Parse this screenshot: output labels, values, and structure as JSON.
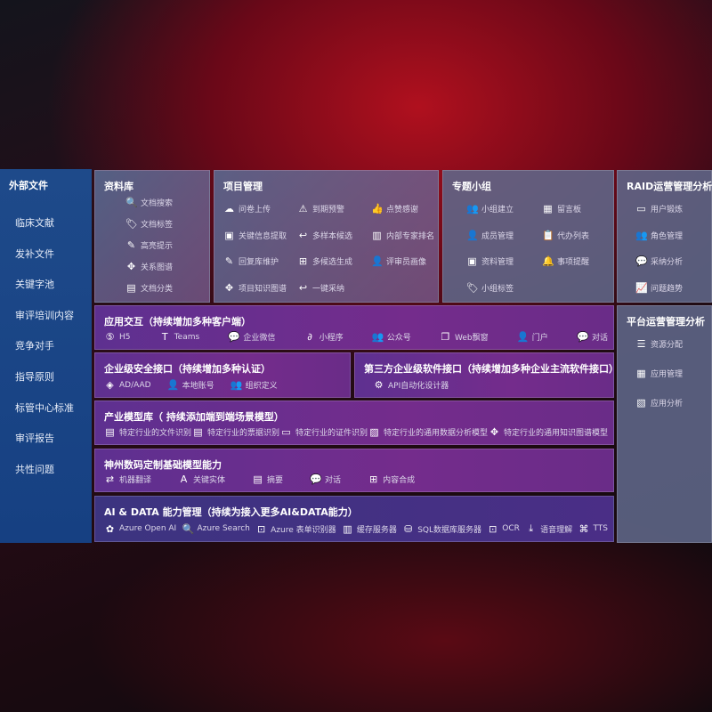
{
  "sidebar": {
    "title": "外部文件",
    "items": [
      "临床文献",
      "发补文件",
      "关键字池",
      "审评培训内容",
      "竞争对手",
      "指导原则",
      "标管中心标准",
      "审评报告",
      "共性问题"
    ]
  },
  "library": {
    "title": "资料库",
    "items": [
      {
        "label": "文档搜索",
        "icon": "document-search-icon",
        "glyph": "🔍"
      },
      {
        "label": "文档标签",
        "icon": "tag-icon",
        "glyph": "🏷"
      },
      {
        "label": "高亮提示",
        "icon": "pen-icon",
        "glyph": "✎"
      },
      {
        "label": "关系图谱",
        "icon": "graph-icon",
        "glyph": "✥"
      },
      {
        "label": "文档分类",
        "icon": "document-classify-icon",
        "glyph": "▤"
      }
    ]
  },
  "project": {
    "title": "项目管理",
    "items": [
      {
        "label": "问卷上传",
        "icon": "cloud-upload-icon",
        "glyph": "☁"
      },
      {
        "label": "到期预警",
        "icon": "alarm-icon",
        "glyph": "⚠"
      },
      {
        "label": "点赞感谢",
        "icon": "thumbs-up-icon",
        "glyph": "👍"
      },
      {
        "label": "关键信息提取",
        "icon": "window-icon",
        "glyph": "▣"
      },
      {
        "label": "多样本候选",
        "icon": "reply-icon",
        "glyph": "↩"
      },
      {
        "label": "内部专家排名",
        "icon": "ranking-icon",
        "glyph": "▥"
      },
      {
        "label": "回复库维护",
        "icon": "edit-icon",
        "glyph": "✎"
      },
      {
        "label": "多候选生成",
        "icon": "puzzle-icon",
        "glyph": "⊞"
      },
      {
        "label": "评审员画像",
        "icon": "user-icon",
        "glyph": "👤"
      },
      {
        "label": "项目知识图谱",
        "icon": "graph-icon",
        "glyph": "✥"
      },
      {
        "label": "一键采纳",
        "icon": "reply-icon",
        "glyph": "↩"
      }
    ]
  },
  "group": {
    "title": "专题小组",
    "items": [
      {
        "label": "小组建立",
        "icon": "group-icon",
        "glyph": "👥"
      },
      {
        "label": "留言板",
        "icon": "bbs-icon",
        "glyph": "▦"
      },
      {
        "label": "成员管理",
        "icon": "user-add-icon",
        "glyph": "👤"
      },
      {
        "label": "代办列表",
        "icon": "clipboard-icon",
        "glyph": "📋"
      },
      {
        "label": "资料管理",
        "icon": "folder-icon",
        "glyph": "▣"
      },
      {
        "label": "事项提醒",
        "icon": "bell-icon",
        "glyph": "🔔"
      },
      {
        "label": "小组标签",
        "icon": "tag-icon",
        "glyph": "🏷"
      }
    ]
  },
  "raid": {
    "title": "RAID运营管理分析",
    "items": [
      {
        "label": "用户锻炼",
        "icon": "id-card-icon",
        "glyph": "▭"
      },
      {
        "label": "角色管理",
        "icon": "users-icon",
        "glyph": "👥"
      },
      {
        "label": "采纳分析",
        "icon": "qa-icon",
        "glyph": "💬"
      },
      {
        "label": "问题趋势",
        "icon": "trend-icon",
        "glyph": "📈"
      }
    ]
  },
  "platform": {
    "title": "平台运营管理分析",
    "items": [
      {
        "label": "资源分配",
        "icon": "list-icon",
        "glyph": "☰"
      },
      {
        "label": "应用管理",
        "icon": "apps-icon",
        "glyph": "▦"
      },
      {
        "label": "应用分析",
        "icon": "analysis-icon",
        "glyph": "▧"
      }
    ]
  },
  "interaction": {
    "title": "应用交互（持续增加多种客户端）",
    "items": [
      {
        "label": "H5",
        "icon": "html5-icon",
        "glyph": "⑤"
      },
      {
        "label": "Teams",
        "icon": "teams-icon",
        "glyph": "T"
      },
      {
        "label": "企业微信",
        "icon": "wechat-icon",
        "glyph": "💬"
      },
      {
        "label": "小程序",
        "icon": "miniprogram-icon",
        "glyph": "∂"
      },
      {
        "label": "公众号",
        "icon": "official-account-icon",
        "glyph": "👥"
      },
      {
        "label": "Web飘窗",
        "icon": "window-icon",
        "glyph": "❐"
      },
      {
        "label": "门户",
        "icon": "portal-icon",
        "glyph": "👤"
      },
      {
        "label": "对话",
        "icon": "chat-icon",
        "glyph": "💬"
      }
    ]
  },
  "security": {
    "title": "企业级安全接口（持续增加多种认证）",
    "items": [
      {
        "label": "AD/AAD",
        "icon": "diamond-icon",
        "glyph": "◈"
      },
      {
        "label": "本地账号",
        "icon": "account-icon",
        "glyph": "👤"
      },
      {
        "label": "组织定义",
        "icon": "org-icon",
        "glyph": "👥"
      }
    ]
  },
  "thirdparty": {
    "title": "第三方企业级软件接口（持续增加多种企业主流软件接口）",
    "items": [
      {
        "label": "API自动化设计器",
        "icon": "gear-icon",
        "glyph": "⚙"
      }
    ]
  },
  "industry": {
    "title": "产业模型库（ 持续添加端到端场景模型）",
    "items": [
      {
        "label": "特定行业的文件识别",
        "icon": "file-icon",
        "glyph": "▤"
      },
      {
        "label": "特定行业的票据识别",
        "icon": "receipt-icon",
        "glyph": "▤"
      },
      {
        "label": "特定行业的证件识别",
        "icon": "id-card-icon",
        "glyph": "▭"
      },
      {
        "label": "特定行业的通用数据分析模型",
        "icon": "chart-icon",
        "glyph": "▨"
      },
      {
        "label": "特定行业的通用知识图谱模型",
        "icon": "graph-icon",
        "glyph": "✥"
      }
    ]
  },
  "basemodel": {
    "title": "神州数码定制基础模型能力",
    "items": [
      {
        "label": "机器翻译",
        "icon": "translate-icon",
        "glyph": "⇄"
      },
      {
        "label": "关键实体",
        "icon": "entity-icon",
        "glyph": "A"
      },
      {
        "label": "摘要",
        "icon": "summary-icon",
        "glyph": "▤"
      },
      {
        "label": "对话",
        "icon": "chat-icon",
        "glyph": "💬"
      },
      {
        "label": "内容合成",
        "icon": "puzzle-icon",
        "glyph": "⊞"
      }
    ]
  },
  "aidata": {
    "title": "AI & DATA 能力管理（持续为接入更多AI&DATA能力）",
    "items": [
      {
        "label": "Azure Open AI",
        "icon": "openai-icon",
        "glyph": "✿"
      },
      {
        "label": "Azure Search",
        "icon": "search-icon",
        "glyph": "🔍"
      },
      {
        "label": "Azure 表单识别器",
        "icon": "form-icon",
        "glyph": "⊡"
      },
      {
        "label": "缓存服务器",
        "icon": "cache-icon",
        "glyph": "▥"
      },
      {
        "label": "SQL数据库服务器",
        "icon": "database-icon",
        "glyph": "⛁"
      },
      {
        "label": "OCR",
        "icon": "ocr-icon",
        "glyph": "⊡"
      },
      {
        "label": "语音理解",
        "icon": "speech-icon",
        "glyph": "⤓"
      },
      {
        "label": "TTS",
        "icon": "tts-icon",
        "glyph": "⌘"
      }
    ]
  }
}
